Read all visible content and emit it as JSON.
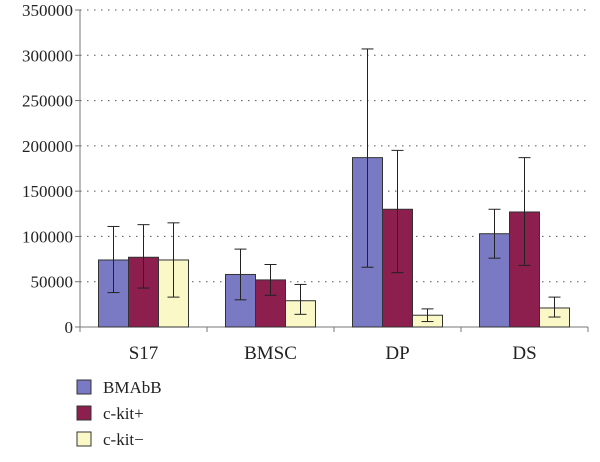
{
  "chart_data": {
    "type": "bar",
    "title": "",
    "xlabel": "",
    "ylabel": "",
    "categories": [
      "S17",
      "BMSC",
      "DP",
      "DS"
    ],
    "ylim": [
      0,
      350000
    ],
    "yticks": [
      0,
      50000,
      100000,
      150000,
      200000,
      250000,
      300000,
      350000
    ],
    "ytick_labels": [
      "0",
      "50000",
      "100000",
      "150000",
      "200000",
      "250000",
      "300000",
      "350000"
    ],
    "grid": "horizontal dotted",
    "legend_position": "bottom-left",
    "series": [
      {
        "name": "BMAbB",
        "color": "#7a7ac4",
        "values": [
          74000,
          58000,
          187000,
          103000
        ],
        "error_low": [
          38000,
          30000,
          66000,
          76000
        ],
        "error_high": [
          111000,
          86000,
          307000,
          130000
        ]
      },
      {
        "name": "c-kit+",
        "color": "#8c1f4e",
        "values": [
          77000,
          52000,
          130000,
          127000
        ],
        "error_low": [
          43000,
          35000,
          60000,
          68000
        ],
        "error_high": [
          113000,
          69000,
          195000,
          187000
        ]
      },
      {
        "name": "c-kit−",
        "color": "#fbf8c8",
        "values": [
          74000,
          29000,
          13000,
          21000
        ],
        "error_low": [
          33000,
          14000,
          6000,
          11000
        ],
        "error_high": [
          115000,
          47000,
          20000,
          33000
        ]
      }
    ]
  }
}
